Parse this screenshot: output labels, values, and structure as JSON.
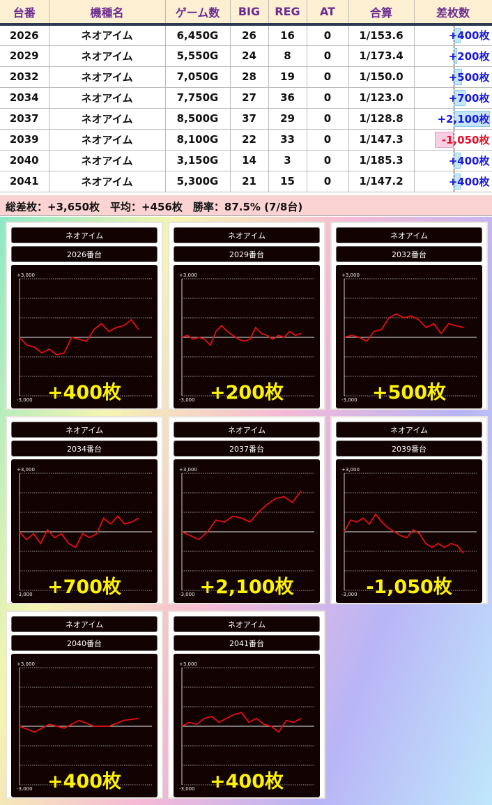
{
  "table": {
    "headers": [
      "台番",
      "機種名",
      "ゲーム数",
      "BIG",
      "REG",
      "AT",
      "合算",
      "差枚数"
    ],
    "rows": [
      {
        "no": "2026",
        "model": "ネオアイム",
        "games": "6,450G",
        "big": "26",
        "reg": "16",
        "at": "0",
        "total": "1/153.6",
        "diff": "+400枚",
        "diff_value": 400
      },
      {
        "no": "2029",
        "model": "ネオアイム",
        "games": "5,550G",
        "big": "24",
        "reg": "8",
        "at": "0",
        "total": "1/173.4",
        "diff": "+200枚",
        "diff_value": 200
      },
      {
        "no": "2032",
        "model": "ネオアイム",
        "games": "7,050G",
        "big": "28",
        "reg": "19",
        "at": "0",
        "total": "1/150.0",
        "diff": "+500枚",
        "diff_value": 500
      },
      {
        "no": "2034",
        "model": "ネオアイム",
        "games": "7,750G",
        "big": "27",
        "reg": "36",
        "at": "0",
        "total": "1/123.0",
        "diff": "+700枚",
        "diff_value": 700
      },
      {
        "no": "2037",
        "model": "ネオアイム",
        "games": "8,500G",
        "big": "37",
        "reg": "29",
        "at": "0",
        "total": "1/128.8",
        "diff": "+2,100枚",
        "diff_value": 2100
      },
      {
        "no": "2039",
        "model": "ネオアイム",
        "games": "8,100G",
        "big": "22",
        "reg": "33",
        "at": "0",
        "total": "1/147.3",
        "diff": "-1,050枚",
        "diff_value": -1050
      },
      {
        "no": "2040",
        "model": "ネオアイム",
        "games": "3,150G",
        "big": "14",
        "reg": "3",
        "at": "0",
        "total": "1/185.3",
        "diff": "+400枚",
        "diff_value": 400
      },
      {
        "no": "2041",
        "model": "ネオアイム",
        "games": "5,300G",
        "big": "21",
        "reg": "15",
        "at": "0",
        "total": "1/147.2",
        "diff": "+400枚",
        "diff_value": 400
      }
    ],
    "summary": "総差枚：+3,650枚　平均：+456枚　勝率：87.5% (7/8台)"
  },
  "colors": {
    "header_text": "#6a2c91",
    "positive": "#1a1ad8",
    "negative": "#e0102a",
    "line": "#e01010",
    "result": "#fff200"
  },
  "chart_data": [
    {
      "type": "line",
      "model": "ネオアイム",
      "title": "2026番台",
      "result": "+400枚",
      "ymax_label": "+3,000",
      "ymin_label": "-3,000",
      "ylim": [
        -3000,
        3000
      ],
      "grid_step": 1000,
      "values": [
        0,
        -400,
        -500,
        -800,
        -600,
        -900,
        -800,
        0,
        -100,
        -200,
        400,
        700,
        300,
        500,
        600,
        900,
        400
      ]
    },
    {
      "type": "line",
      "model": "ネオアイム",
      "title": "2029番台",
      "result": "+200枚",
      "ymax_label": "+3,000",
      "ymin_label": "-3,000",
      "ylim": [
        -3000,
        3000
      ],
      "grid_step": 1000,
      "values": [
        0,
        100,
        -100,
        0,
        -100,
        -400,
        300,
        600,
        300,
        100,
        -100,
        -200,
        -100,
        500,
        200,
        100,
        -100,
        100,
        0,
        300,
        100,
        200
      ]
    },
    {
      "type": "line",
      "model": "ネオアイム",
      "title": "2032番台",
      "result": "+500枚",
      "ymax_label": "+3,000",
      "ymin_label": "-3,000",
      "ylim": [
        -3000,
        3000
      ],
      "grid_step": 1000,
      "values": [
        0,
        100,
        0,
        -200,
        300,
        400,
        1000,
        1200,
        1000,
        1100,
        900,
        500,
        700,
        200,
        700,
        600,
        500
      ]
    },
    {
      "type": "line",
      "model": "ネオアイム",
      "title": "2034番台",
      "result": "+700枚",
      "ymax_label": "+3,000",
      "ymin_label": "-3,000",
      "ylim": [
        -3000,
        3000
      ],
      "grid_step": 1000,
      "values": [
        0,
        -400,
        -100,
        -600,
        100,
        -300,
        -100,
        -600,
        -800,
        -100,
        -300,
        -100,
        700,
        400,
        800,
        400,
        500,
        700
      ]
    },
    {
      "type": "line",
      "model": "ネオアイム",
      "title": "2037番台",
      "result": "+2,100枚",
      "ymax_label": "+3,000",
      "ymin_label": "-3,000",
      "ylim": [
        -3000,
        3000
      ],
      "grid_step": 1000,
      "values": [
        0,
        -200,
        -400,
        0,
        600,
        500,
        800,
        700,
        500,
        1000,
        1400,
        1700,
        1800,
        1500,
        2100
      ]
    },
    {
      "type": "line",
      "model": "ネオアイム",
      "title": "2039番台",
      "result": "-1,050枚",
      "ymax_label": "+3,000",
      "ymin_label": "-3,000",
      "ylim": [
        -3000,
        3000
      ],
      "grid_step": 1000,
      "values": [
        0,
        600,
        500,
        700,
        400,
        900,
        500,
        200,
        0,
        -200,
        -300,
        100,
        -100,
        -600,
        -800,
        -600,
        -800,
        -600,
        -700,
        -1100
      ]
    },
    {
      "type": "line",
      "model": "ネオアイム",
      "title": "2040番台",
      "result": "+400枚",
      "ymax_label": "+3,000",
      "ymin_label": "-3,000",
      "ylim": [
        -3000,
        3000
      ],
      "grid_step": 1000,
      "values": [
        0,
        -300,
        100,
        -100,
        300,
        0,
        0,
        300,
        400
      ]
    },
    {
      "type": "line",
      "model": "ネオアイム",
      "title": "2041番台",
      "result": "+400枚",
      "ymax_label": "+3,000",
      "ymin_label": "-3,000",
      "ylim": [
        -3000,
        3000
      ],
      "grid_step": 1000,
      "values": [
        0,
        200,
        100,
        400,
        500,
        200,
        400,
        600,
        700,
        200,
        400,
        100,
        0,
        -300,
        300,
        200,
        400
      ]
    }
  ]
}
